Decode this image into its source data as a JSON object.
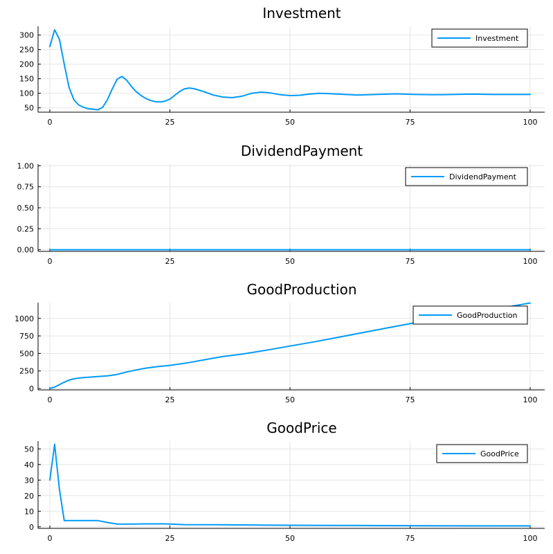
{
  "chart_data": [
    {
      "type": "line",
      "title": "Investment",
      "xlim": [
        0,
        100
      ],
      "ylim": [
        35,
        330
      ],
      "xticks": [
        0,
        25,
        50,
        75,
        100
      ],
      "yticks": [
        50,
        100,
        150,
        200,
        250,
        300
      ],
      "grid": true,
      "legend_position": "top-right",
      "series": [
        {
          "name": "Investment",
          "color": "#009AFA",
          "x": [
            0,
            1,
            2,
            3,
            4,
            5,
            6,
            7,
            8,
            9,
            10,
            11,
            12,
            13,
            14,
            15,
            16,
            17,
            18,
            19,
            20,
            21,
            22,
            23,
            24,
            25,
            26,
            27,
            28,
            29,
            30,
            32,
            34,
            36,
            38,
            40,
            42,
            44,
            46,
            48,
            50,
            52,
            54,
            56,
            58,
            60,
            64,
            68,
            72,
            76,
            80,
            84,
            88,
            92,
            96,
            100
          ],
          "y": [
            260,
            318,
            285,
            200,
            120,
            78,
            60,
            52,
            47,
            45,
            43,
            52,
            78,
            115,
            148,
            158,
            145,
            123,
            105,
            92,
            82,
            75,
            71,
            70,
            73,
            80,
            93,
            106,
            115,
            118,
            116,
            106,
            94,
            87,
            85,
            90,
            100,
            104,
            101,
            95,
            92,
            93,
            97,
            100,
            99,
            97,
            94,
            96,
            98,
            96,
            95,
            96,
            97,
            96,
            96,
            96
          ]
        }
      ]
    },
    {
      "type": "line",
      "title": "DividendPayment",
      "xlim": [
        0,
        100
      ],
      "ylim": [
        -0.02,
        1.02
      ],
      "xticks": [
        0,
        25,
        50,
        75,
        100
      ],
      "yticks": [
        0.0,
        0.25,
        0.5,
        0.75,
        1.0
      ],
      "ytick_labels": [
        "0.00",
        "0.25",
        "0.50",
        "0.75",
        "1.00"
      ],
      "grid": true,
      "legend_position": "top-right",
      "series": [
        {
          "name": "DividendPayment",
          "color": "#009AFA",
          "x": [
            0,
            100
          ],
          "y": [
            0,
            0
          ]
        }
      ]
    },
    {
      "type": "line",
      "title": "GoodProduction",
      "xlim": [
        0,
        100
      ],
      "ylim": [
        -20,
        1225
      ],
      "xticks": [
        0,
        25,
        50,
        75,
        100
      ],
      "yticks": [
        0,
        250,
        500,
        750,
        1000
      ],
      "grid": true,
      "legend_position": "top-right",
      "series": [
        {
          "name": "GoodProduction",
          "color": "#009AFA",
          "x": [
            0,
            1,
            2,
            3,
            4,
            5,
            6,
            7,
            8,
            10,
            12,
            14,
            16,
            18,
            20,
            22,
            25,
            28,
            30,
            33,
            36,
            40,
            45,
            50,
            55,
            60,
            65,
            70,
            75,
            80,
            85,
            90,
            95,
            100
          ],
          "y": [
            0,
            20,
            55,
            90,
            120,
            138,
            148,
            155,
            160,
            170,
            180,
            200,
            235,
            265,
            290,
            308,
            330,
            358,
            382,
            420,
            455,
            490,
            545,
            605,
            665,
            730,
            795,
            860,
            925,
            990,
            1050,
            1105,
            1160,
            1220
          ]
        }
      ]
    },
    {
      "type": "line",
      "title": "GoodPrice",
      "xlim": [
        0,
        100
      ],
      "ylim": [
        -1,
        55
      ],
      "xticks": [
        0,
        25,
        50,
        75,
        100
      ],
      "yticks": [
        0,
        10,
        20,
        30,
        40,
        50
      ],
      "grid": true,
      "legend_position": "top-right",
      "series": [
        {
          "name": "GoodPrice",
          "color": "#009AFA",
          "x": [
            0,
            1,
            2,
            3,
            4,
            6,
            8,
            10,
            12,
            14,
            16,
            20,
            24,
            28,
            35,
            40,
            50,
            60,
            70,
            80,
            90,
            100
          ],
          "y": [
            30,
            53,
            24,
            4,
            4,
            4,
            4,
            4,
            2.8,
            1.8,
            1.7,
            1.9,
            1.9,
            1.4,
            1.3,
            1.2,
            1.0,
            0.9,
            0.8,
            0.7,
            0.6,
            0.6
          ]
        }
      ]
    }
  ]
}
